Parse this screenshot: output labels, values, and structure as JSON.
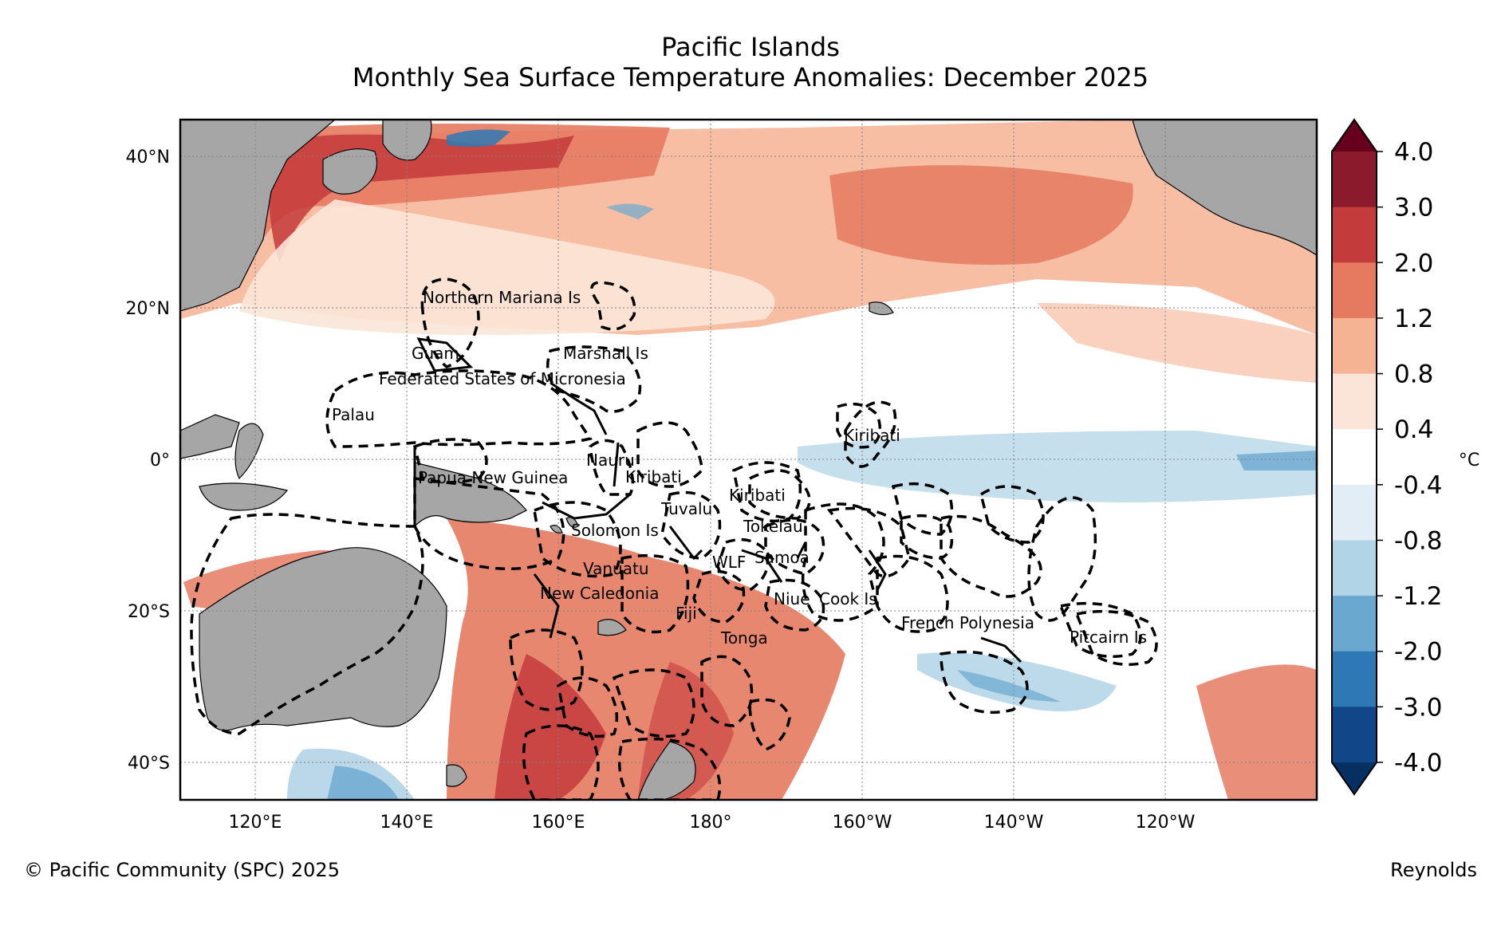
{
  "title": "Pacific Islands",
  "subtitle": "Monthly Sea Surface Temperature Anomalies: December 2025",
  "footer": {
    "copyright": "© Pacific Community (SPC) 2025",
    "source": "Reynolds"
  },
  "axes": {
    "lat_labels": [
      "40°N",
      "20°N",
      "0°",
      "20°S",
      "40°S"
    ],
    "lon_labels": [
      "120°E",
      "140°E",
      "160°E",
      "180°",
      "160°W",
      "140°W",
      "120°W"
    ]
  },
  "colorbar": {
    "unit": "°C",
    "tick_labels": [
      "4.0",
      "3.0",
      "2.0",
      "1.2",
      "0.8",
      "0.4",
      "-0.4",
      "-0.8",
      "-1.2",
      "-2.0",
      "-3.0",
      "-4.0"
    ],
    "colors": [
      "#67001f",
      "#8b1a2c",
      "#c43b3c",
      "#e57a60",
      "#f6b394",
      "#fbe5d8",
      "#ffffff",
      "#e3edf5",
      "#b2d4e7",
      "#6ba8d0",
      "#2e79b5",
      "#114789",
      "#053061"
    ]
  },
  "regions": [
    "Northern Mariana Is",
    "Guam",
    "Marshall Is",
    "Federated States of Micronesia",
    "Palau",
    "Nauru",
    "Kiribati",
    "Kiribati",
    "Kiribati",
    "Papua New Guinea",
    "Tuvalu",
    "Tokelau",
    "Solomon Is",
    "WLF",
    "Samoa",
    "Vanuatu",
    "New Caledonia",
    "Niue",
    "Cook Is",
    "Fiji",
    "Tonga",
    "French Polynesia",
    "Pitcairn Is"
  ]
}
